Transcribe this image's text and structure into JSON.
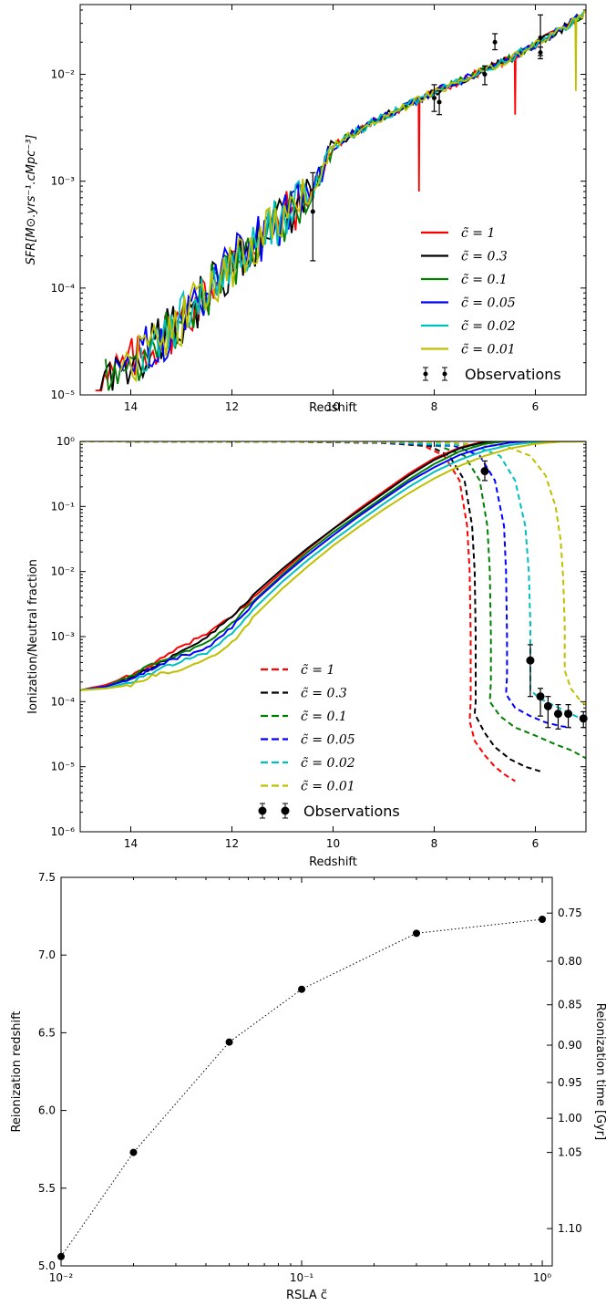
{
  "chart_data": [
    {
      "type": "line",
      "xlabel": "Redshift",
      "ylabel": "SFR[M⊙.yrs⁻¹.cMpc⁻³]",
      "xlim": [
        15,
        5
      ],
      "ylim": [
        1e-05,
        0.045
      ],
      "yscale": "log",
      "xticks": [
        "14",
        "12",
        "10",
        "8",
        "6"
      ],
      "yticks": [
        "10⁻⁵",
        "10⁻⁴",
        "10⁻³",
        "10⁻²"
      ],
      "legend_position": "bottom-right",
      "series": [
        {
          "name": "c̃ = 1",
          "color": "#ff0000"
        },
        {
          "name": "c̃ = 0.3",
          "color": "#000000"
        },
        {
          "name": "c̃ = 0.1",
          "color": "#008000"
        },
        {
          "name": "c̃ = 0.05",
          "color": "#0000ff"
        },
        {
          "name": "c̃ = 0.02",
          "color": "#00bfbf"
        },
        {
          "name": "c̃ = 0.01",
          "color": "#bfbf00"
        }
      ],
      "trend": {
        "x": [
          14.7,
          14.0,
          13.5,
          13.0,
          12.5,
          12.0,
          11.5,
          11.0,
          10.6,
          10.4,
          10.2,
          10.0,
          9.5,
          9.0,
          8.5,
          8.0,
          7.5,
          7.0,
          6.5,
          6.0,
          5.5,
          5.0
        ],
        "y": [
          1.1e-05,
          2e-05,
          3e-05,
          5e-05,
          9e-05,
          0.00017,
          0.00028,
          0.00045,
          0.00065,
          0.0008,
          0.0013,
          0.0021,
          0.003,
          0.004,
          0.0052,
          0.0068,
          0.0085,
          0.011,
          0.014,
          0.019,
          0.026,
          0.038
        ]
      },
      "spikes": [
        {
          "name": "c̃ = 1",
          "x": 8.3,
          "y": 0.0008
        },
        {
          "name": "c̃ = 1",
          "x": 6.4,
          "y": 0.0042
        },
        {
          "name": "c̃ = 0.01",
          "x": 5.2,
          "y": 0.007
        }
      ],
      "observations": {
        "name": "Observations",
        "x": [
          10.4,
          8.0,
          7.9,
          7.0,
          6.8,
          5.9,
          5.9
        ],
        "y": [
          0.00052,
          0.006,
          0.0055,
          0.01,
          0.02,
          0.022,
          0.016
        ],
        "yerr_low": [
          0.00018,
          0.0045,
          0.0042,
          0.008,
          0.017,
          0.015,
          0.014
        ],
        "yerr_high": [
          0.0012,
          0.008,
          0.007,
          0.012,
          0.024,
          0.036,
          0.018
        ]
      }
    },
    {
      "type": "line",
      "xlabel": "Redshift",
      "ylabel": "Ionization/Neutral fraction",
      "xlim": [
        15,
        5
      ],
      "ylim": [
        1e-06,
        1
      ],
      "yscale": "log",
      "xticks": [
        "14",
        "12",
        "10",
        "8",
        "6"
      ],
      "yticks": [
        "10⁻⁶",
        "10⁻⁵",
        "10⁻⁴",
        "10⁻³",
        "10⁻²",
        "10⁻¹",
        "10⁰"
      ],
      "legend_position": "bottom-center",
      "ionized_series": [
        {
          "name": "c̃ = 1",
          "color": "#ff0000",
          "x": [
            15,
            14.5,
            14,
            13.5,
            13,
            12.5,
            12,
            11.5,
            11,
            10.5,
            10,
            9.5,
            9,
            8.5,
            8,
            7.5,
            7.2,
            7.0
          ],
          "y": [
            0.00015,
            0.00018,
            0.00025,
            0.0004,
            0.0007,
            0.0011,
            0.002,
            0.0045,
            0.01,
            0.022,
            0.045,
            0.09,
            0.17,
            0.32,
            0.55,
            0.8,
            0.92,
            1.0
          ]
        },
        {
          "name": "c̃ = 0.3",
          "color": "#000000",
          "x": [
            15,
            14.5,
            14,
            13.5,
            13,
            12.5,
            12,
            11.5,
            11,
            10.5,
            10,
            9.5,
            9,
            8.5,
            8,
            7.5,
            7.2,
            6.9
          ],
          "y": [
            0.00015,
            0.00017,
            0.00023,
            0.00036,
            0.0006,
            0.001,
            0.002,
            0.005,
            0.011,
            0.023,
            0.045,
            0.085,
            0.16,
            0.3,
            0.52,
            0.78,
            0.9,
            1.0
          ]
        },
        {
          "name": "c̃ = 0.1",
          "color": "#008000",
          "x": [
            15,
            14.5,
            14,
            13.5,
            13,
            12.5,
            12,
            11.5,
            11,
            10.5,
            10,
            9.5,
            9,
            8.5,
            8,
            7.5,
            7.0,
            6.6
          ],
          "y": [
            0.00015,
            0.00017,
            0.00025,
            0.0004,
            0.00055,
            0.0008,
            0.0016,
            0.004,
            0.009,
            0.02,
            0.04,
            0.075,
            0.14,
            0.26,
            0.45,
            0.7,
            0.92,
            1.0
          ]
        },
        {
          "name": "c̃ = 0.05",
          "color": "#0000ff",
          "x": [
            15,
            14.5,
            14,
            13.5,
            13,
            12.5,
            12,
            11.5,
            11,
            10.5,
            10,
            9.5,
            9,
            8.5,
            8,
            7.5,
            7.0,
            6.5,
            6.2
          ],
          "y": [
            0.00015,
            0.00017,
            0.00022,
            0.00035,
            0.0005,
            0.00065,
            0.0014,
            0.0038,
            0.0085,
            0.018,
            0.036,
            0.07,
            0.13,
            0.24,
            0.4,
            0.62,
            0.82,
            0.96,
            1.0
          ]
        },
        {
          "name": "c̃ = 0.02",
          "color": "#00bfbf",
          "x": [
            15,
            14.5,
            14,
            13.5,
            13,
            12.5,
            12,
            11.5,
            11,
            10.5,
            10,
            9.5,
            9,
            8.5,
            8,
            7.5,
            7.0,
            6.5,
            6.0,
            5.7
          ],
          "y": [
            0.00015,
            0.00016,
            0.0002,
            0.0003,
            0.00042,
            0.00055,
            0.0011,
            0.003,
            0.007,
            0.015,
            0.03,
            0.058,
            0.11,
            0.2,
            0.34,
            0.52,
            0.72,
            0.88,
            0.98,
            1.0
          ]
        },
        {
          "name": "c̃ = 0.01",
          "color": "#bfbf00",
          "x": [
            15,
            14.5,
            14,
            13.5,
            13,
            12.5,
            12,
            11.5,
            11,
            10.5,
            10,
            9.5,
            9,
            8.5,
            8,
            7.5,
            7.0,
            6.5,
            6.0,
            5.5,
            5.0
          ],
          "y": [
            0.00015,
            0.00016,
            0.00018,
            0.00026,
            0.00032,
            0.00045,
            0.0008,
            0.0023,
            0.0055,
            0.012,
            0.025,
            0.048,
            0.09,
            0.16,
            0.27,
            0.42,
            0.6,
            0.78,
            0.92,
            0.99,
            1.0
          ]
        }
      ],
      "neutral_series": [
        {
          "name": "c̃ = 1",
          "color": "#ff0000",
          "x": [
            15,
            11,
            9,
            8.2,
            7.8,
            7.5,
            7.35,
            7.3,
            7.28,
            7.28,
            7.3,
            7.2,
            7.0,
            6.8,
            6.6,
            6.4
          ],
          "y": [
            1.0,
            0.99,
            0.95,
            0.85,
            0.6,
            0.25,
            0.05,
            0.01,
            0.001,
            0.0001,
            5e-05,
            2.5e-05,
            1.5e-05,
            1e-05,
            7.5e-06,
            6e-06
          ]
        },
        {
          "name": "c̃ = 0.3",
          "color": "#000000",
          "x": [
            15,
            11,
            9,
            8.1,
            7.7,
            7.4,
            7.25,
            7.2,
            7.18,
            7.18,
            7.2,
            7.0,
            6.8,
            6.5,
            6.2,
            5.9
          ],
          "y": [
            1.0,
            0.99,
            0.95,
            0.85,
            0.6,
            0.25,
            0.05,
            0.01,
            0.001,
            0.0001,
            6.5e-05,
            3.3e-05,
            2e-05,
            1.3e-05,
            1e-05,
            8.5e-06
          ]
        },
        {
          "name": "c̃ = 0.1",
          "color": "#008000",
          "x": [
            15,
            11,
            9,
            7.9,
            7.4,
            7.1,
            6.95,
            6.9,
            6.88,
            6.88,
            6.9,
            6.7,
            6.4,
            6.0,
            5.6,
            5.3,
            5.0
          ],
          "y": [
            1.0,
            0.99,
            0.96,
            0.85,
            0.6,
            0.25,
            0.05,
            0.01,
            0.001,
            0.0002,
            0.0001,
            6e-05,
            4e-05,
            3e-05,
            2.2e-05,
            1.8e-05,
            1.35e-05
          ]
        },
        {
          "name": "c̃ = 0.05",
          "color": "#0000ff",
          "x": [
            15,
            11,
            9,
            7.6,
            7.1,
            6.8,
            6.62,
            6.58,
            6.56,
            6.56,
            6.58,
            6.4,
            6.1,
            5.8,
            5.5,
            5.3
          ],
          "y": [
            1.0,
            0.99,
            0.96,
            0.85,
            0.6,
            0.25,
            0.05,
            0.01,
            0.001,
            0.00025,
            0.00013,
            8e-05,
            6e-05,
            4.8e-05,
            4.2e-05,
            4e-05
          ]
        },
        {
          "name": "c̃ = 0.02",
          "color": "#00bfbf",
          "x": [
            15,
            11,
            9,
            7.2,
            6.7,
            6.4,
            6.2,
            6.13,
            6.1,
            6.1,
            6.1,
            5.9,
            5.6,
            5.3,
            5.1
          ],
          "y": [
            1.0,
            0.99,
            0.97,
            0.85,
            0.6,
            0.25,
            0.05,
            0.01,
            0.0015,
            0.0003,
            0.00015,
            0.00011,
            8.5e-05,
            6.5e-05,
            5.5e-05
          ]
        },
        {
          "name": "c̃ = 0.01",
          "color": "#bfbf00",
          "x": [
            15,
            11,
            8,
            6.6,
            6.1,
            5.8,
            5.6,
            5.5,
            5.45,
            5.42,
            5.42,
            5.3,
            5.1,
            5.0
          ],
          "y": [
            1.0,
            0.99,
            0.98,
            0.85,
            0.6,
            0.3,
            0.1,
            0.03,
            0.008,
            0.0015,
            0.0003,
            0.00016,
            0.0001,
            9e-05
          ]
        }
      ],
      "observations": {
        "name": "Observations",
        "x": [
          7.0,
          6.1,
          5.9,
          5.75,
          5.55,
          5.35,
          5.05
        ],
        "y": [
          0.35,
          0.00043,
          0.00012,
          8.5e-05,
          6.5e-05,
          6.5e-05,
          5.5e-05
        ],
        "yerr_low": [
          0.25,
          0.00012,
          6e-05,
          4e-05,
          3.8e-05,
          4e-05,
          4e-05
        ],
        "yerr_high": [
          0.5,
          0.00075,
          0.00016,
          0.00012,
          9e-05,
          9e-05,
          7e-05
        ]
      }
    },
    {
      "type": "scatter",
      "xlabel": "RSLA c̃",
      "ylabel": "Reionization redshift",
      "ylabel_right": "Reionization time [Gyr]",
      "xscale": "log",
      "xlim": [
        0.01,
        1.1
      ],
      "ylim": [
        5.0,
        7.5
      ],
      "xticks": [
        "10⁻²",
        "10⁻¹",
        "10⁰"
      ],
      "yticks": [
        "5.0",
        "5.5",
        "6.0",
        "6.5",
        "7.0",
        "7.5"
      ],
      "yticks_right": [
        "0.75",
        "0.80",
        "0.85",
        "0.90",
        "0.95",
        "1.00",
        "1.05",
        "1.10"
      ],
      "x": [
        0.01,
        0.02,
        0.05,
        0.1,
        0.3,
        1.0
      ],
      "y": [
        5.06,
        5.73,
        6.44,
        6.78,
        7.14,
        7.23
      ]
    }
  ]
}
